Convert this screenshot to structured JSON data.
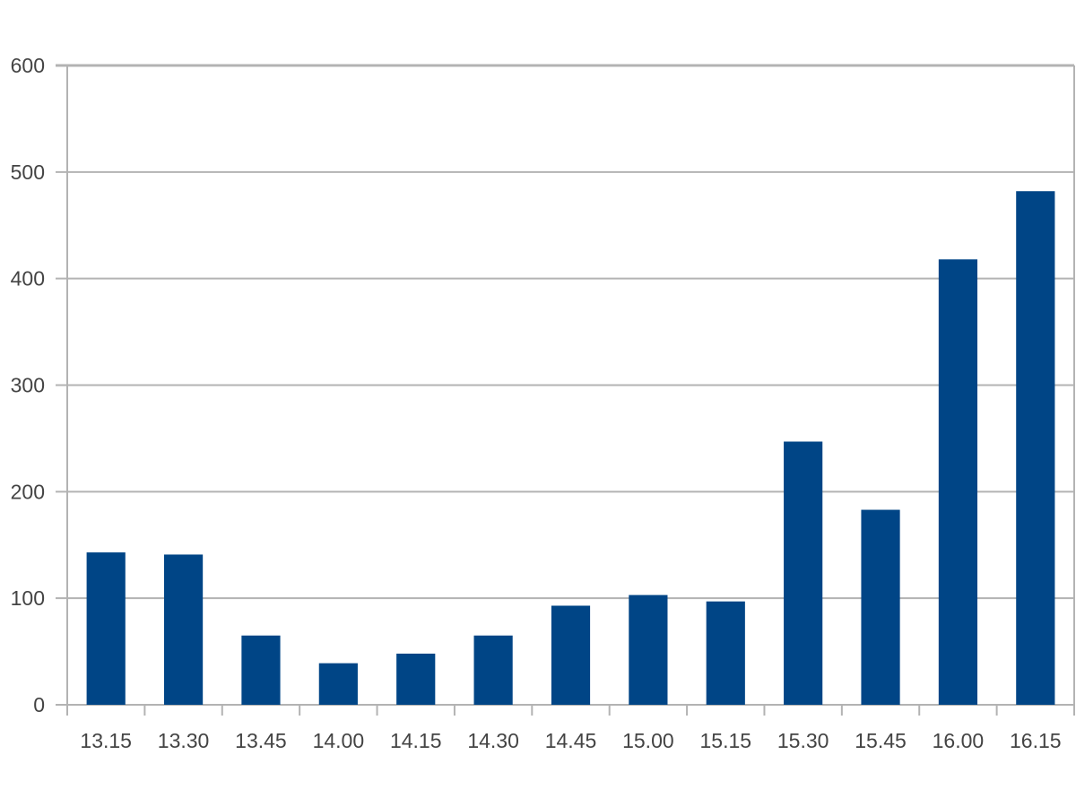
{
  "chart_data": {
    "type": "bar",
    "title": "",
    "xlabel": "",
    "ylabel": "",
    "categories": [
      "13.15",
      "13.30",
      "13.45",
      "14.00",
      "14.15",
      "14.30",
      "14.45",
      "15.00",
      "15.15",
      "15.30",
      "15.45",
      "16.00",
      "16.15"
    ],
    "values": [
      143,
      141,
      65,
      39,
      48,
      65,
      93,
      103,
      97,
      247,
      183,
      418,
      482
    ],
    "ylim": [
      0,
      600
    ],
    "yticks": [
      "0",
      "100",
      "200",
      "300",
      "400",
      "500",
      "600"
    ],
    "grid": true,
    "legend": "none",
    "bar_color": "#004586",
    "grid_color": "#b3b3b3"
  }
}
